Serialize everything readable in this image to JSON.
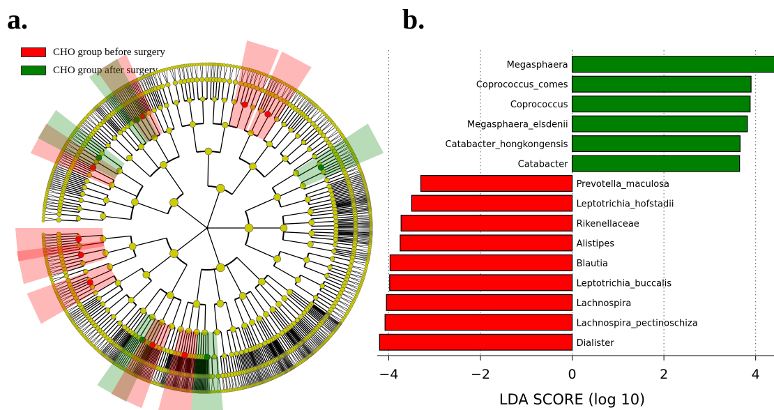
{
  "panel_a": {
    "label": "a.",
    "legend": [
      {
        "label": "CHO group before surgery",
        "color": "#ff0000"
      },
      {
        "label": "CHO group after surgery",
        "color": "#008000"
      }
    ],
    "node_color": "#cccc00"
  },
  "panel_b": {
    "label": "b."
  },
  "chart_data": {
    "type": "bar",
    "orientation": "horizontal",
    "xlabel": "LDA SCORE (log 10)",
    "xlim": [
      -4.25,
      4.4
    ],
    "xticks": [
      -4,
      -2,
      0,
      2,
      4
    ],
    "xtick_labels": [
      "−4",
      "−2",
      "0",
      "2",
      "4"
    ],
    "grid": "vertical dotted",
    "bars": [
      {
        "name": "Megasphaera",
        "value": 4.45,
        "group": "after"
      },
      {
        "name": "Coprococcus_comes",
        "value": 3.9,
        "group": "after"
      },
      {
        "name": "Coprococcus",
        "value": 3.88,
        "group": "after"
      },
      {
        "name": "Megasphaera_elsdenii",
        "value": 3.82,
        "group": "after"
      },
      {
        "name": "Catabacter_hongkongensis",
        "value": 3.66,
        "group": "after"
      },
      {
        "name": "Catabacter",
        "value": 3.65,
        "group": "after"
      },
      {
        "name": "Prevotella_maculosa",
        "value": -3.3,
        "group": "before"
      },
      {
        "name": "Leptotrichia_hofstadii",
        "value": -3.5,
        "group": "before"
      },
      {
        "name": "Rikenellaceae",
        "value": -3.73,
        "group": "before"
      },
      {
        "name": "Alistipes",
        "value": -3.75,
        "group": "before"
      },
      {
        "name": "Blautia",
        "value": -3.97,
        "group": "before"
      },
      {
        "name": "Leptotrichia_buccalis",
        "value": -3.98,
        "group": "before"
      },
      {
        "name": "Lachnospira",
        "value": -4.05,
        "group": "before"
      },
      {
        "name": "Lachnospira_pectinoschiza",
        "value": -4.08,
        "group": "before"
      },
      {
        "name": "Dialister",
        "value": -4.2,
        "group": "before"
      }
    ],
    "colors": {
      "after": "#008000",
      "before": "#ff0000"
    }
  }
}
